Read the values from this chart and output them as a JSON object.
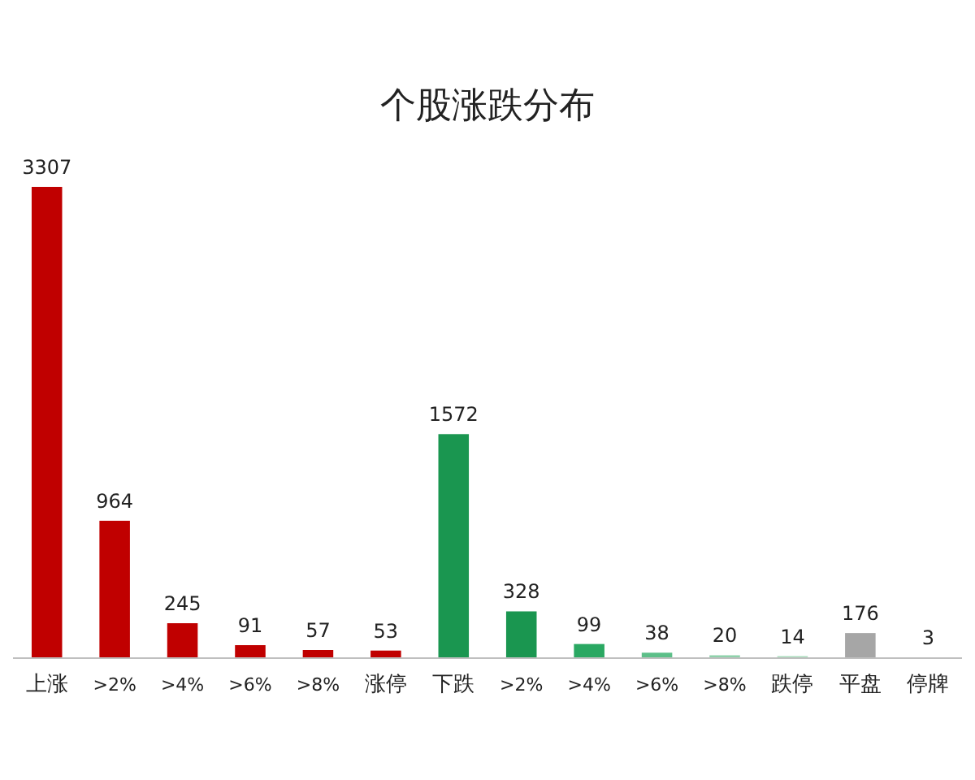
{
  "chart_data": {
    "type": "bar",
    "title": "个股涨跌分布",
    "categories": [
      "上涨",
      ">2%",
      ">4%",
      ">6%",
      ">8%",
      "涨停",
      "下跌",
      ">2%",
      ">4%",
      ">6%",
      ">8%",
      "跌停",
      "平盘",
      "停牌"
    ],
    "values": [
      3307,
      964,
      245,
      91,
      57,
      53,
      1572,
      328,
      99,
      38,
      20,
      14,
      176,
      3
    ],
    "colors": [
      "#c00000",
      "#c00000",
      "#c00000",
      "#c00000",
      "#c00000",
      "#c00000",
      "#1a9650",
      "#1a9650",
      "#2aa862",
      "#5cbf88",
      "#8fd2ab",
      "#a8dcbc",
      "#a6a6a6",
      "#a6a6a6"
    ],
    "data_labels": true
  }
}
